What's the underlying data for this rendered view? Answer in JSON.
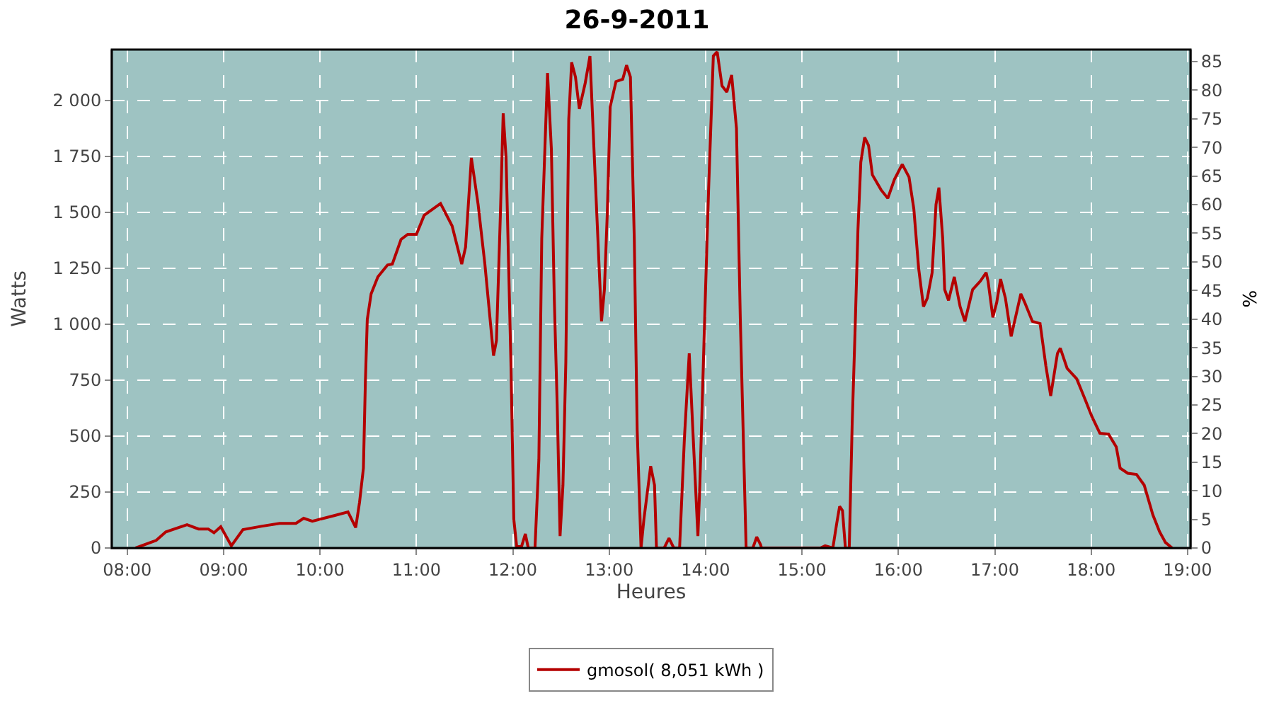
{
  "chart_data": {
    "type": "line",
    "title": "26-9-2011",
    "xlabel": "Heures",
    "ylabel": "Watts",
    "y2label": "%",
    "x": [
      8.087,
      8.3,
      8.4,
      8.62,
      8.74,
      8.84,
      8.9,
      8.97,
      9.08,
      9.2,
      9.39,
      9.58,
      9.75,
      9.83,
      9.92,
      10.14,
      10.29,
      10.37,
      10.41,
      10.45,
      10.47,
      10.49,
      10.53,
      10.6,
      10.7,
      10.75,
      10.84,
      10.91,
      11.0,
      11.08,
      11.25,
      11.37,
      11.47,
      11.51,
      11.57,
      11.64,
      11.71,
      11.76,
      11.8,
      11.83,
      11.87,
      11.9,
      11.93,
      11.98,
      12.01,
      12.04,
      12.09,
      12.13,
      12.16,
      12.23,
      12.27,
      12.3,
      12.36,
      12.4,
      12.43,
      12.46,
      12.49,
      12.52,
      12.55,
      12.58,
      12.61,
      12.65,
      12.69,
      12.75,
      12.8,
      12.84,
      12.89,
      12.92,
      12.95,
      12.98,
      13.01,
      13.07,
      13.14,
      13.18,
      13.22,
      13.26,
      13.29,
      13.33,
      13.36,
      13.43,
      13.47,
      13.49,
      13.57,
      13.62,
      13.67,
      13.73,
      13.78,
      13.83,
      13.88,
      13.92,
      13.94,
      13.99,
      14.03,
      14.08,
      14.12,
      14.17,
      14.22,
      14.27,
      14.32,
      14.36,
      14.42,
      14.49,
      14.53,
      14.57,
      14.58,
      15.19,
      15.24,
      15.32,
      15.36,
      15.39,
      15.42,
      15.45,
      15.49,
      15.52,
      15.55,
      15.58,
      15.61,
      15.65,
      15.69,
      15.73,
      15.82,
      15.89,
      15.96,
      16.04,
      16.11,
      16.16,
      16.21,
      16.26,
      16.3,
      16.35,
      16.39,
      16.42,
      16.46,
      16.48,
      16.52,
      16.58,
      16.64,
      16.69,
      16.77,
      16.85,
      16.91,
      16.93,
      16.98,
      17.02,
      17.06,
      17.11,
      17.17,
      17.21,
      17.27,
      17.31,
      17.39,
      17.47,
      17.53,
      17.58,
      17.65,
      17.68,
      17.75,
      17.85,
      17.94,
      18.01,
      18.09,
      18.18,
      18.26,
      18.3,
      18.38,
      18.47,
      18.55,
      18.64,
      18.71,
      18.77,
      18.84
    ],
    "series": [
      {
        "name": "gmosol( 8,051 kWh )",
        "color": "#b40000",
        "values": [
          0,
          34,
          72,
          104,
          85,
          85,
          68,
          95,
          10,
          82,
          97,
          110,
          110,
          133,
          120,
          144,
          161,
          91,
          205,
          357,
          737,
          1022,
          1136,
          1212,
          1265,
          1269,
          1379,
          1402,
          1402,
          1487,
          1540,
          1440,
          1269,
          1345,
          1744,
          1535,
          1269,
          1041,
          860,
          927,
          1478,
          1943,
          1744,
          832,
          129,
          6,
          6,
          63,
          0,
          0,
          395,
          1382,
          2123,
          1782,
          1117,
          642,
          53,
          281,
          832,
          1915,
          2171,
          2105,
          1963,
          2076,
          2199,
          1800,
          1307,
          1013,
          1155,
          1497,
          1972,
          2085,
          2095,
          2158,
          2105,
          1382,
          528,
          0,
          129,
          366,
          281,
          0,
          0,
          44,
          0,
          0,
          490,
          870,
          414,
          53,
          281,
          1022,
          1592,
          2199,
          2218,
          2066,
          2038,
          2114,
          1876,
          1022,
          0,
          0,
          49,
          15,
          0,
          0,
          10,
          0,
          110,
          186,
          167,
          0,
          0,
          547,
          965,
          1420,
          1725,
          1835,
          1800,
          1668,
          1601,
          1563,
          1649,
          1715,
          1658,
          1516,
          1250,
          1079,
          1117,
          1231,
          1535,
          1611,
          1382,
          1155,
          1107,
          1212,
          1079,
          1013,
          1155,
          1193,
          1231,
          1193,
          1031,
          1098,
          1202,
          1117,
          946,
          1022,
          1136,
          1098,
          1013,
          1003,
          813,
          680,
          870,
          893,
          803,
          756,
          661,
          585,
          513,
          509,
          452,
          357,
          334,
          329,
          281,
          148,
          72,
          25,
          0
        ]
      }
    ],
    "xlim": [
      7.84,
      19.03
    ],
    "xticks": [
      {
        "value": 8,
        "label": "08:00"
      },
      {
        "value": 9,
        "label": "09:00"
      },
      {
        "value": 10,
        "label": "10:00"
      },
      {
        "value": 11,
        "label": "11:00"
      },
      {
        "value": 12,
        "label": "12:00"
      },
      {
        "value": 13,
        "label": "13:00"
      },
      {
        "value": 14,
        "label": "14:00"
      },
      {
        "value": 15,
        "label": "15:00"
      },
      {
        "value": 16,
        "label": "16:00"
      },
      {
        "value": 17,
        "label": "17:00"
      },
      {
        "value": 18,
        "label": "18:00"
      },
      {
        "value": 19,
        "label": "19:00"
      }
    ],
    "ylim": [
      0,
      2228
    ],
    "yticks": [
      0,
      250,
      500,
      750,
      {
        "value": 1000,
        "label": "1 000"
      },
      {
        "value": 1250,
        "label": "1 250"
      },
      {
        "value": 1500,
        "label": "1 500"
      },
      {
        "value": 1750,
        "label": "1 750"
      },
      {
        "value": 2000,
        "label": "2 000"
      }
    ],
    "y2lim": [
      0,
      87.1
    ],
    "y2ticks": [
      0,
      5,
      10,
      15,
      20,
      25,
      30,
      35,
      40,
      45,
      50,
      55,
      60,
      65,
      70,
      75,
      80,
      85
    ],
    "grid": true,
    "legend": "bottom",
    "marker": "none",
    "line_style": "solid"
  }
}
